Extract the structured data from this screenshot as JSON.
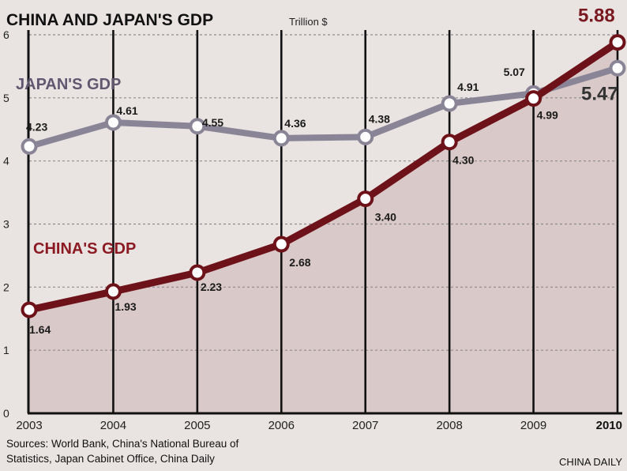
{
  "chart_data": {
    "type": "line",
    "title": "CHINA AND JAPAN'S GDP",
    "unit": "Trillion $",
    "categories": [
      "2003",
      "2004",
      "2005",
      "2006",
      "2007",
      "2008",
      "2009",
      "2010"
    ],
    "ylim": [
      0,
      6
    ],
    "yticks": [
      "0",
      "1",
      "2",
      "3",
      "4",
      "5",
      "6"
    ],
    "grid": true,
    "series": [
      {
        "name": "JAPAN'S GDP",
        "color": "#8a8596",
        "values": [
          4.23,
          4.61,
          4.55,
          4.36,
          4.38,
          4.91,
          5.07,
          5.47
        ],
        "labels": [
          "4.23",
          "4.61",
          "4.55",
          "4.36",
          "4.38",
          "4.91",
          "5.07",
          "5.47"
        ]
      },
      {
        "name": "CHINA'S GDP",
        "color": "#6e1219",
        "values": [
          1.64,
          1.93,
          2.23,
          2.68,
          3.4,
          4.3,
          4.99,
          5.88
        ],
        "labels": [
          "1.64",
          "1.93",
          "2.23",
          "2.68",
          "3.40",
          "4.30",
          "4.99",
          "5.88"
        ]
      }
    ],
    "sources": "Sources: World Bank, China's National Bureau of Statistics, Japan Cabinet Office, China Daily",
    "sources_line1": "Sources: World Bank, China's National Bureau of",
    "sources_line2": "Statistics, Japan Cabinet Office, China Daily",
    "credit": "CHINA DAILY"
  }
}
